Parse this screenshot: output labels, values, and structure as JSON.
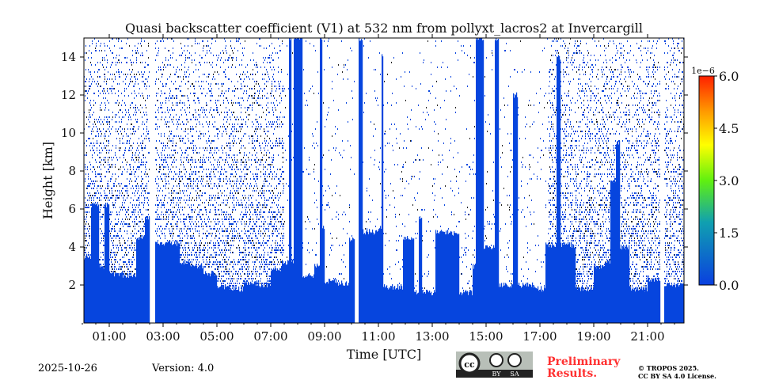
{
  "chart_data": {
    "type": "heatmap",
    "title": "Quasi backscatter coefficient (V1) at 532 nm from pollyxt_lacros2 at Invercargill",
    "xlabel": "Time [UTC]",
    "ylabel": "Height [km]",
    "xlim_hours": [
      0.05,
      22.35
    ],
    "ylim": [
      0,
      15
    ],
    "xticks": [
      "01:00",
      "03:00",
      "05:00",
      "07:00",
      "09:00",
      "11:00",
      "13:00",
      "15:00",
      "17:00",
      "19:00",
      "21:00"
    ],
    "xtick_hours": [
      1,
      3,
      5,
      7,
      9,
      11,
      13,
      15,
      17,
      19,
      21
    ],
    "yticks": [
      "2",
      "4",
      "6",
      "8",
      "10",
      "12",
      "14"
    ],
    "ytick_values": [
      2,
      4,
      6,
      8,
      10,
      12,
      14
    ],
    "colorbar": {
      "min": 0,
      "max": 6,
      "exponent": "1e−6",
      "ticks": [
        "0.0",
        "1.5",
        "3.0",
        "4.5",
        "6.0"
      ],
      "tick_values": [
        0,
        1.5,
        3,
        4.5,
        6
      ]
    },
    "gaps_hours": [
      [
        2.5,
        2.68
      ],
      [
        10.1,
        10.25
      ],
      [
        21.45,
        21.6
      ]
    ],
    "layer_top_km": [
      [
        0.05,
        3.5
      ],
      [
        0.3,
        6.2
      ],
      [
        0.6,
        3.0
      ],
      [
        0.8,
        6.2
      ],
      [
        1.0,
        2.6
      ],
      [
        1.5,
        2.5
      ],
      [
        2.0,
        4.5
      ],
      [
        2.3,
        5.5
      ],
      [
        2.5,
        2.0
      ],
      [
        2.7,
        4.2
      ],
      [
        3.3,
        4.2
      ],
      [
        3.6,
        3.2
      ],
      [
        4.0,
        3.0
      ],
      [
        4.5,
        2.6
      ],
      [
        5.0,
        1.9
      ],
      [
        5.5,
        1.8
      ],
      [
        6.0,
        2.1
      ],
      [
        6.5,
        2.0
      ],
      [
        7.0,
        2.8
      ],
      [
        7.4,
        3.2
      ],
      [
        7.65,
        15
      ],
      [
        7.75,
        3.2
      ],
      [
        7.85,
        15
      ],
      [
        8.15,
        2.5
      ],
      [
        8.6,
        3.0
      ],
      [
        8.8,
        15
      ],
      [
        8.9,
        5.0
      ],
      [
        9.0,
        2.2
      ],
      [
        9.5,
        2.1
      ],
      [
        9.9,
        4.4
      ],
      [
        10.25,
        15
      ],
      [
        10.4,
        4.8
      ],
      [
        11.0,
        5.0
      ],
      [
        11.1,
        14
      ],
      [
        11.15,
        1.9
      ],
      [
        11.9,
        4.5
      ],
      [
        12.3,
        1.6
      ],
      [
        12.5,
        5.5
      ],
      [
        12.6,
        1.6
      ],
      [
        13.1,
        4.8
      ],
      [
        13.6,
        4.7
      ],
      [
        14.0,
        1.6
      ],
      [
        14.5,
        3.0
      ],
      [
        14.6,
        15
      ],
      [
        14.9,
        4.0
      ],
      [
        15.3,
        15
      ],
      [
        15.45,
        2.0
      ],
      [
        16.0,
        12
      ],
      [
        16.15,
        2.0
      ],
      [
        16.8,
        1.8
      ],
      [
        17.2,
        4.1
      ],
      [
        17.6,
        14
      ],
      [
        17.75,
        4.1
      ],
      [
        18.3,
        1.8
      ],
      [
        19.0,
        3.0
      ],
      [
        19.4,
        3.2
      ],
      [
        19.6,
        7.5
      ],
      [
        19.8,
        9.5
      ],
      [
        19.95,
        4.0
      ],
      [
        20.3,
        1.8
      ],
      [
        21.0,
        2.3
      ],
      [
        21.6,
        2.0
      ],
      [
        22.35,
        2.1
      ]
    ]
  },
  "footer": {
    "date": "2025-10-26",
    "version": "Version: 4.0",
    "preliminary_line1": "Preliminary",
    "preliminary_line2": "Results.",
    "copyright_line1": "© TROPOS 2025.",
    "copyright_line2": "CC BY SA 4.0 License.",
    "badge_cc": "cc",
    "badge_by": "BY",
    "badge_sa": "SA"
  },
  "colors": {
    "low": "#0645de",
    "high": "#ff2000",
    "pre": "#ff3030"
  }
}
